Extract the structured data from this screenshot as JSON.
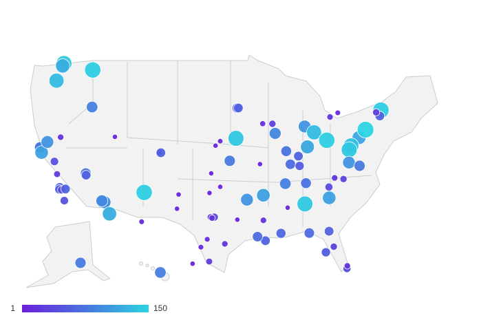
{
  "chart_data": {
    "type": "bubble-map",
    "lon": [
      -122.3,
      -122.4,
      -117.4,
      -122.7,
      -116.2,
      -122.4,
      -122.3,
      -121.9,
      -121.5,
      -119.8,
      -119.8,
      -119.0,
      -118.2,
      -118.2,
      -117.9,
      -117.4,
      -117.2,
      -115.1,
      -115.0,
      -112.0,
      -111.8,
      -110.9,
      -112.2,
      -111.9,
      -105.0,
      -104.8,
      -106.6,
      -106.5,
      -101.8,
      -101.9,
      -97.5,
      -96.0,
      -97.3,
      -96.8,
      -97.3,
      -97.1,
      -97.7,
      -98.5,
      -95.4,
      -97.4,
      -99.5,
      -96.0,
      -96.7,
      -94.6,
      -93.3,
      -93.1,
      -93.6,
      -90.2,
      -90.0,
      -92.3,
      -90.1,
      -91.1,
      -93.7,
      -90.2,
      -87.6,
      -87.9,
      -89.4,
      -83.0,
      -86.2,
      -83.0,
      -81.7,
      -84.5,
      -85.8,
      -84.5,
      -86.8,
      -83.9,
      -84.4,
      -86.8,
      -80.8,
      -78.6,
      -79.8,
      -81.0,
      -80.0,
      -78.9,
      -77.6,
      -75.2,
      -74.0,
      -76.6,
      -77.0,
      -77.4,
      -76.0,
      -71.0,
      -71.4,
      -71.8,
      -81.7,
      -81.4,
      -82.5,
      -80.2,
      -80.1,
      -84.3,
      -88.0,
      -149.9,
      -157.9
    ],
    "lat": [
      47.6,
      47.3,
      47.7,
      45.5,
      43.6,
      37.8,
      37.8,
      37.3,
      38.6,
      36.7,
      39.5,
      35.4,
      34.0,
      33.8,
      33.8,
      34.0,
      32.7,
      36.2,
      36.0,
      33.4,
      33.4,
      32.2,
      33.5,
      40.8,
      39.7,
      39.7,
      35.1,
      31.8,
      35.2,
      33.6,
      35.5,
      36.2,
      37.7,
      32.8,
      32.8,
      32.7,
      30.3,
      29.4,
      29.8,
      27.8,
      27.5,
      41.3,
      40.8,
      39.1,
      45.0,
      45.0,
      41.6,
      38.6,
      35.1,
      34.7,
      30.0,
      30.5,
      32.5,
      32.3,
      41.9,
      43.0,
      43.1,
      42.3,
      39.8,
      40.0,
      41.5,
      39.1,
      38.3,
      38.0,
      36.2,
      36.0,
      33.7,
      33.5,
      35.2,
      35.8,
      36.1,
      34.0,
      40.4,
      42.9,
      43.2,
      40.0,
      40.7,
      39.3,
      38.9,
      37.5,
      36.9,
      42.4,
      41.8,
      42.3,
      30.3,
      28.5,
      28.0,
      25.8,
      26.1,
      30.4,
      30.7,
      61.2,
      21.3
    ],
    "values": [
      140,
      120,
      145,
      130,
      85,
      70,
      80,
      110,
      100,
      45,
      20,
      25,
      65,
      55,
      40,
      60,
      45,
      75,
      60,
      110,
      100,
      120,
      90,
      5,
      15,
      60,
      145,
      10,
      5,
      5,
      5,
      5,
      5,
      40,
      25,
      20,
      10,
      10,
      20,
      25,
      5,
      8,
      5,
      80,
      65,
      60,
      140,
      5,
      110,
      100,
      60,
      70,
      5,
      20,
      90,
      30,
      15,
      100,
      75,
      115,
      130,
      60,
      70,
      55,
      85,
      75,
      140,
      5,
      40,
      30,
      20,
      110,
      145,
      20,
      10,
      115,
      150,
      135,
      140,
      100,
      80,
      145,
      60,
      30,
      60,
      30,
      55,
      40,
      20,
      70,
      65,
      80,
      85
    ],
    "colorbar": {
      "range": [
        1,
        150
      ],
      "colors": [
        "#6a1fdb",
        "#4a73e0",
        "#2bd4e0"
      ]
    }
  }
}
